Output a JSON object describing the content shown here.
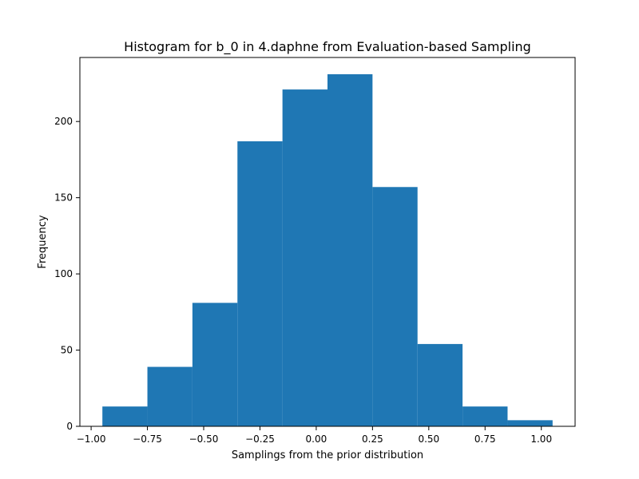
{
  "chart_data": {
    "type": "bar",
    "title": "Histogram for b_0 in 4.daphne from Evaluation-based Sampling",
    "xlabel": "Samplings from the prior distribution",
    "ylabel": "Frequency",
    "bin_edges": [
      -0.95,
      -0.75,
      -0.55,
      -0.35,
      -0.15,
      0.05,
      0.25,
      0.45,
      0.65,
      0.85,
      1.05
    ],
    "values": [
      13,
      39,
      81,
      187,
      221,
      231,
      157,
      54,
      13,
      4
    ],
    "xlim": [
      -1.05,
      1.15
    ],
    "ylim": [
      0,
      242
    ],
    "xticks": [
      -1.0,
      -0.75,
      -0.5,
      -0.25,
      0.0,
      0.25,
      0.5,
      0.75,
      1.0
    ],
    "xtick_labels": [
      "−1.00",
      "−0.75",
      "−0.50",
      "−0.25",
      "0.00",
      "0.25",
      "0.50",
      "0.75",
      "1.00"
    ],
    "yticks": [
      0,
      50,
      100,
      150,
      200
    ],
    "ytick_labels": [
      "0",
      "50",
      "100",
      "150",
      "200"
    ],
    "bar_color": "#1f77b4",
    "grid": false,
    "legend": "none"
  }
}
